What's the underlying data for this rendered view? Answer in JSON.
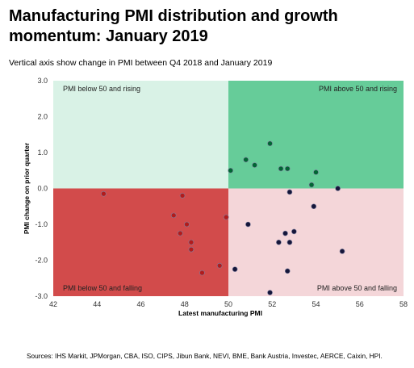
{
  "title": "Manufacturing PMI distribution and growth momentum: January 2019",
  "subtitle": "Vertical axis show change in PMI between Q4 2018 and January 2019",
  "source": "Sources: IHS Markit, JPMorgan, CBA, ISO, CIPS, Jibun Bank, NEVI, BME, Bank Austria, Investec, AERCE, Caixin, HPI.",
  "colors": {
    "below50_rising": "#d9f2e6",
    "above50_rising": "#66cc99",
    "below50_falling": "#d24b4b",
    "above50_falling": "#f4d6d9",
    "point_green_side": "#006633",
    "point_red_side": "#b31b1b",
    "point_navy": "#15163a"
  },
  "chart_data": {
    "type": "scatter",
    "title": "",
    "xlabel": "Latest manufacturing PMI",
    "ylabel": "PMI change on prior quarter",
    "xlim": [
      42,
      58
    ],
    "ylim": [
      -3.0,
      3.0
    ],
    "x_ticks": [
      "42",
      "44",
      "46",
      "48",
      "50",
      "52",
      "54",
      "56",
      "58"
    ],
    "y_ticks": [
      "3.0",
      "2.0",
      "1.0",
      "0.0",
      "-1.0",
      "-2.0",
      "-3.0"
    ],
    "x_tick_values": [
      42,
      44,
      46,
      48,
      50,
      52,
      54,
      56,
      58
    ],
    "y_tick_values": [
      3,
      2,
      1,
      0,
      -1,
      -2,
      -3
    ],
    "threshold_x": 50,
    "threshold_y": 0,
    "quadrant_labels": {
      "top_left": "PMI below 50 and rising",
      "top_right": "PMI above 50 and rising",
      "bottom_left": "PMI below 50 and falling",
      "bottom_right": "PMI above 50 and falling"
    },
    "points": [
      {
        "x": 50.1,
        "y": 0.5
      },
      {
        "x": 50.8,
        "y": 0.8
      },
      {
        "x": 51.2,
        "y": 0.65
      },
      {
        "x": 51.9,
        "y": 1.25
      },
      {
        "x": 52.4,
        "y": 0.55
      },
      {
        "x": 52.7,
        "y": 0.55
      },
      {
        "x": 53.8,
        "y": 0.1
      },
      {
        "x": 54.0,
        "y": 0.45
      },
      {
        "x": 55.0,
        "y": 0.0
      },
      {
        "x": 44.3,
        "y": -0.15
      },
      {
        "x": 47.9,
        "y": -0.2
      },
      {
        "x": 47.5,
        "y": -0.75
      },
      {
        "x": 48.1,
        "y": -1.0
      },
      {
        "x": 47.8,
        "y": -1.25
      },
      {
        "x": 48.3,
        "y": -1.5
      },
      {
        "x": 48.3,
        "y": -1.7
      },
      {
        "x": 48.8,
        "y": -2.35
      },
      {
        "x": 49.6,
        "y": -2.15
      },
      {
        "x": 49.9,
        "y": -0.8
      },
      {
        "x": 52.8,
        "y": -0.1
      },
      {
        "x": 53.9,
        "y": -0.5
      },
      {
        "x": 50.9,
        "y": -1.0
      },
      {
        "x": 53.0,
        "y": -1.2
      },
      {
        "x": 52.6,
        "y": -1.25
      },
      {
        "x": 52.3,
        "y": -1.5
      },
      {
        "x": 52.8,
        "y": -1.5
      },
      {
        "x": 55.2,
        "y": -1.75
      },
      {
        "x": 50.3,
        "y": -2.25
      },
      {
        "x": 52.7,
        "y": -2.3
      },
      {
        "x": 51.9,
        "y": -2.9
      }
    ]
  }
}
